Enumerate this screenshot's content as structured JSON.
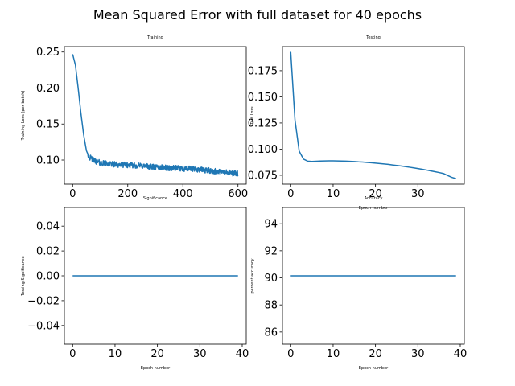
{
  "figure": {
    "suptitle": "Mean Squared Error with full dataset for 40 epochs"
  },
  "style": {
    "line_color": "#1f77b4",
    "axis_color": "#000000",
    "background": "#ffffff"
  },
  "chart_data": [
    {
      "id": "training",
      "type": "line",
      "title": "Training",
      "xlabel": "",
      "ylabel": "Training Loss (per batch)",
      "xlim": [
        -30,
        630
      ],
      "ylim": [
        0.0665,
        0.2575
      ],
      "xticks": [
        0,
        200,
        400,
        600
      ],
      "xtick_labels": [
        "0",
        "200",
        "400",
        "600"
      ],
      "yticks": [
        0.1,
        0.15,
        0.2,
        0.25
      ],
      "ytick_labels": [
        "0.10",
        "0.15",
        "0.20",
        "0.25"
      ],
      "grid": false,
      "noise_amplitude": 0.004,
      "series": [
        {
          "x": [
            0,
            10,
            20,
            30,
            40,
            50,
            60,
            80,
            100,
            150,
            200,
            250,
            300,
            350,
            400,
            450,
            500,
            550,
            600
          ],
          "y": [
            0.247,
            0.232,
            0.2,
            0.165,
            0.135,
            0.113,
            0.104,
            0.099,
            0.096,
            0.094,
            0.093,
            0.092,
            0.09,
            0.089,
            0.088,
            0.087,
            0.085,
            0.083,
            0.081
          ]
        }
      ]
    },
    {
      "id": "testing",
      "type": "line",
      "title": "Testing",
      "xlabel": "Epoch number",
      "ylabel": "Test Loss",
      "xlim": [
        -1.95,
        40.95
      ],
      "ylim": [
        0.0665,
        0.198
      ],
      "xticks": [
        0,
        10,
        20,
        30
      ],
      "xtick_labels": [
        "0",
        "10",
        "20",
        "30"
      ],
      "yticks": [
        0.075,
        0.1,
        0.125,
        0.15,
        0.175
      ],
      "ytick_labels": [
        "0.075",
        "0.100",
        "0.125",
        "0.150",
        "0.175"
      ],
      "grid": false,
      "series": [
        {
          "x": [
            0,
            1,
            2,
            3,
            4,
            5,
            6,
            7,
            8,
            9,
            10,
            11,
            12,
            13,
            14,
            15,
            16,
            17,
            18,
            19,
            20,
            21,
            22,
            23,
            24,
            25,
            26,
            27,
            28,
            29,
            30,
            31,
            32,
            33,
            34,
            35,
            36,
            37,
            38,
            39
          ],
          "y": [
            0.193,
            0.128,
            0.098,
            0.0905,
            0.0885,
            0.0882,
            0.0884,
            0.0886,
            0.0887,
            0.0888,
            0.0888,
            0.0887,
            0.0886,
            0.0885,
            0.0883,
            0.0881,
            0.0878,
            0.0876,
            0.0873,
            0.087,
            0.0866,
            0.0862,
            0.0858,
            0.0854,
            0.0849,
            0.0844,
            0.0839,
            0.0833,
            0.0827,
            0.0821,
            0.0814,
            0.0807,
            0.08,
            0.0792,
            0.0784,
            0.0776,
            0.0767,
            0.0748,
            0.073,
            0.0718
          ]
        }
      ]
    },
    {
      "id": "significance",
      "type": "line",
      "title": "Significance",
      "xlabel": "Epoch number",
      "ylabel": "Testing Significance",
      "xlim": [
        -1.95,
        40.95
      ],
      "ylim": [
        -0.055,
        0.055
      ],
      "xticks": [
        0,
        10,
        20,
        30,
        40
      ],
      "xtick_labels": [
        "0",
        "10",
        "20",
        "30",
        "40"
      ],
      "yticks": [
        -0.04,
        -0.02,
        0.0,
        0.02,
        0.04
      ],
      "ytick_labels": [
        "−0.04",
        "−0.02",
        "0.00",
        "0.02",
        "0.04"
      ],
      "grid": false,
      "series": [
        {
          "x": [
            0,
            39
          ],
          "y": [
            0.0,
            0.0
          ]
        }
      ]
    },
    {
      "id": "accuracy",
      "type": "line",
      "title": "Accuracy",
      "xlabel": "Epoch number",
      "ylabel": "percent accuracy",
      "xlim": [
        -1.95,
        40.95
      ],
      "ylim": [
        85.1,
        95.2
      ],
      "xticks": [
        0,
        10,
        20,
        30,
        40
      ],
      "xtick_labels": [
        "0",
        "10",
        "20",
        "30",
        "40"
      ],
      "yticks": [
        86,
        88,
        90,
        92,
        94
      ],
      "ytick_labels": [
        "86",
        "88",
        "90",
        "92",
        "94"
      ],
      "grid": false,
      "series": [
        {
          "x": [
            0,
            39
          ],
          "y": [
            90.15,
            90.15
          ]
        }
      ]
    }
  ]
}
